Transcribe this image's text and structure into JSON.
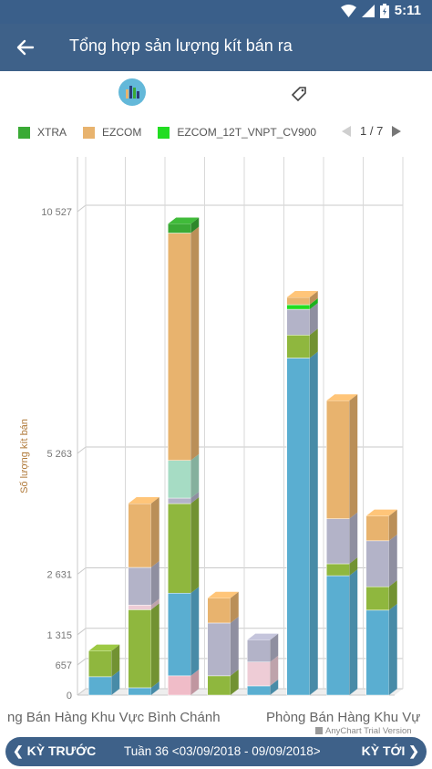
{
  "status_bar": {
    "time": "5:11"
  },
  "app_bar": {
    "title": "Tổng hợp sản lượng kít bán ra"
  },
  "legend": {
    "items": [
      {
        "label": "XTRA",
        "color": "#3aaa35"
      },
      {
        "label": "EZCOM",
        "color": "#e8b36e"
      },
      {
        "label": "EZCOM_12T_VNPT_CV900",
        "color": "#22dd22"
      }
    ],
    "page": "1 / 7"
  },
  "chart_data": {
    "type": "bar",
    "stacked": true,
    "style": "3d-column",
    "ylabel": "Số lượng kít bán",
    "yticks": [
      0,
      657,
      1315,
      2631,
      5263,
      10527
    ],
    "ytick_labels": [
      "0",
      "657",
      "1 315",
      "2 631",
      "5 263",
      "10 527"
    ],
    "ylim": [
      0,
      10527
    ],
    "grid": true,
    "visible_legend_series": [
      "XTRA",
      "EZCOM",
      "EZCOM_12T_VNPT_CV900"
    ],
    "category_labels_visible": [
      "ng Bán Hàng Khu Vực Bình Chánh",
      "Phòng Bán Hàng Khu Vự"
    ],
    "series_colors": [
      "#5aaed1",
      "#8fb73e",
      "#b3b3c8",
      "#eeccd6",
      "#a6dcc4",
      "#e8b36e",
      "#f0bcc8",
      "#22dd22",
      "#3aaa35"
    ],
    "columns": [
      {
        "segments": [
          {
            "series": 0,
            "value": 400
          },
          {
            "series": 1,
            "value": 560
          }
        ]
      },
      {
        "segments": [
          {
            "series": 0,
            "value": 160
          },
          {
            "series": 1,
            "value": 1700
          },
          {
            "series": 3,
            "value": 100
          },
          {
            "series": 2,
            "value": 820
          },
          {
            "series": 5,
            "value": 1390
          }
        ]
      },
      {
        "segments": [
          {
            "series": 6,
            "value": 420
          },
          {
            "series": 0,
            "value": 1800
          },
          {
            "series": 1,
            "value": 1950
          },
          {
            "series": 2,
            "value": 120
          },
          {
            "series": 4,
            "value": 820
          },
          {
            "series": 5,
            "value": 4950
          },
          {
            "series": 8,
            "value": 200
          }
        ]
      },
      {
        "segments": [
          {
            "series": 1,
            "value": 420
          },
          {
            "series": 2,
            "value": 1150
          },
          {
            "series": 5,
            "value": 540
          }
        ]
      },
      {
        "segments": [
          {
            "series": 0,
            "value": 200
          },
          {
            "series": 3,
            "value": 520
          },
          {
            "series": 2,
            "value": 480
          }
        ]
      },
      {
        "segments": [
          {
            "series": 0,
            "value": 7340
          },
          {
            "series": 1,
            "value": 500
          },
          {
            "series": 2,
            "value": 560
          },
          {
            "series": 7,
            "value": 100
          },
          {
            "series": 5,
            "value": 160
          }
        ]
      },
      {
        "segments": [
          {
            "series": 0,
            "value": 2600
          },
          {
            "series": 1,
            "value": 260
          },
          {
            "series": 2,
            "value": 980
          },
          {
            "series": 5,
            "value": 2570
          }
        ]
      },
      {
        "segments": [
          {
            "series": 0,
            "value": 1850
          },
          {
            "series": 1,
            "value": 510
          },
          {
            "series": 2,
            "value": 1000
          },
          {
            "series": 5,
            "value": 540
          }
        ]
      }
    ],
    "watermark": "AnyChart Trial Version"
  },
  "nav": {
    "prev_label": "❮ KỲ TRƯỚC",
    "period": "Tuần 36 <03/09/2018 - 09/09/2018>",
    "next_label": "KỲ TỚI ❯"
  }
}
